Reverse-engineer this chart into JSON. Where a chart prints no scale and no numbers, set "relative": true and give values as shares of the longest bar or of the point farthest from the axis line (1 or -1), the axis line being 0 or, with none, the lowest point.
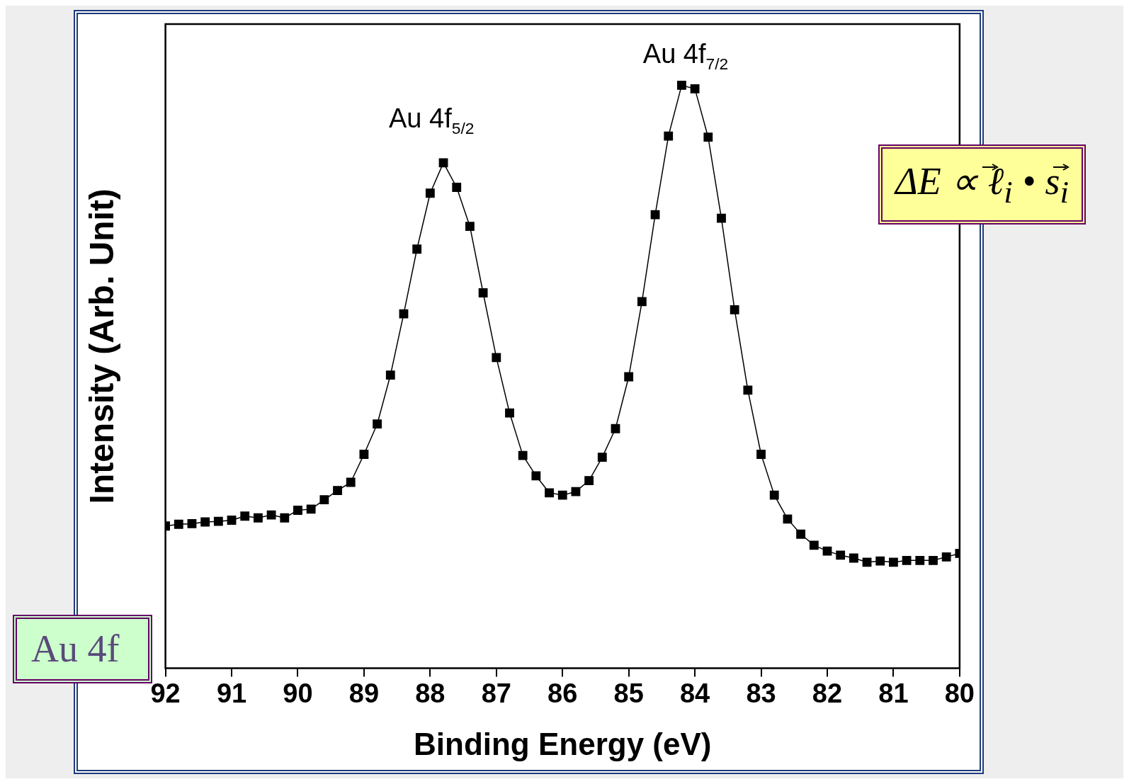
{
  "chart_data": {
    "type": "line",
    "xlabel": "Binding Energy (eV)",
    "ylabel": "Intensity (Arb. Unit)",
    "relative": true,
    "xlim": [
      92,
      80
    ],
    "xticks": [
      92,
      91,
      90,
      89,
      88,
      87,
      86,
      85,
      84,
      83,
      82,
      81,
      80
    ],
    "grid": false,
    "legend": false,
    "marker": "square",
    "line_style": "solid",
    "series": [
      {
        "color": "#000000",
        "x": [
          92.0,
          91.8,
          91.6,
          91.4,
          91.2,
          91.0,
          90.8,
          90.6,
          90.4,
          90.2,
          90.0,
          89.8,
          89.6,
          89.4,
          89.2,
          89.0,
          88.8,
          88.6,
          88.4,
          88.2,
          88.0,
          87.8,
          87.6,
          87.4,
          87.2,
          87.0,
          86.8,
          86.6,
          86.4,
          86.2,
          86.0,
          85.8,
          85.6,
          85.4,
          85.2,
          85.0,
          84.8,
          84.6,
          84.4,
          84.2,
          84.0,
          83.8,
          83.6,
          83.4,
          83.2,
          83.0,
          82.8,
          82.6,
          82.4,
          82.2,
          82.0,
          81.8,
          81.6,
          81.4,
          81.2,
          81.0,
          80.8,
          80.6,
          80.4,
          80.2,
          80.0
        ],
        "values": [
          0.244,
          0.247,
          0.248,
          0.251,
          0.252,
          0.254,
          0.261,
          0.258,
          0.263,
          0.258,
          0.271,
          0.273,
          0.289,
          0.305,
          0.319,
          0.367,
          0.419,
          0.503,
          0.608,
          0.719,
          0.815,
          0.867,
          0.825,
          0.758,
          0.644,
          0.533,
          0.438,
          0.365,
          0.33,
          0.301,
          0.297,
          0.303,
          0.322,
          0.362,
          0.411,
          0.5,
          0.629,
          0.778,
          0.913,
          1.0,
          0.994,
          0.911,
          0.772,
          0.615,
          0.477,
          0.367,
          0.297,
          0.256,
          0.23,
          0.211,
          0.201,
          0.194,
          0.189,
          0.182,
          0.184,
          0.182,
          0.185,
          0.185,
          0.185,
          0.191,
          0.197
        ]
      }
    ],
    "annotations": [
      "Au 4f$_{5/2}$",
      "Au 4f$_{7/2}$",
      "ΔE ∝ ℓ$_{i}$ • s$_{i}$",
      "Au 4f"
    ]
  }
}
